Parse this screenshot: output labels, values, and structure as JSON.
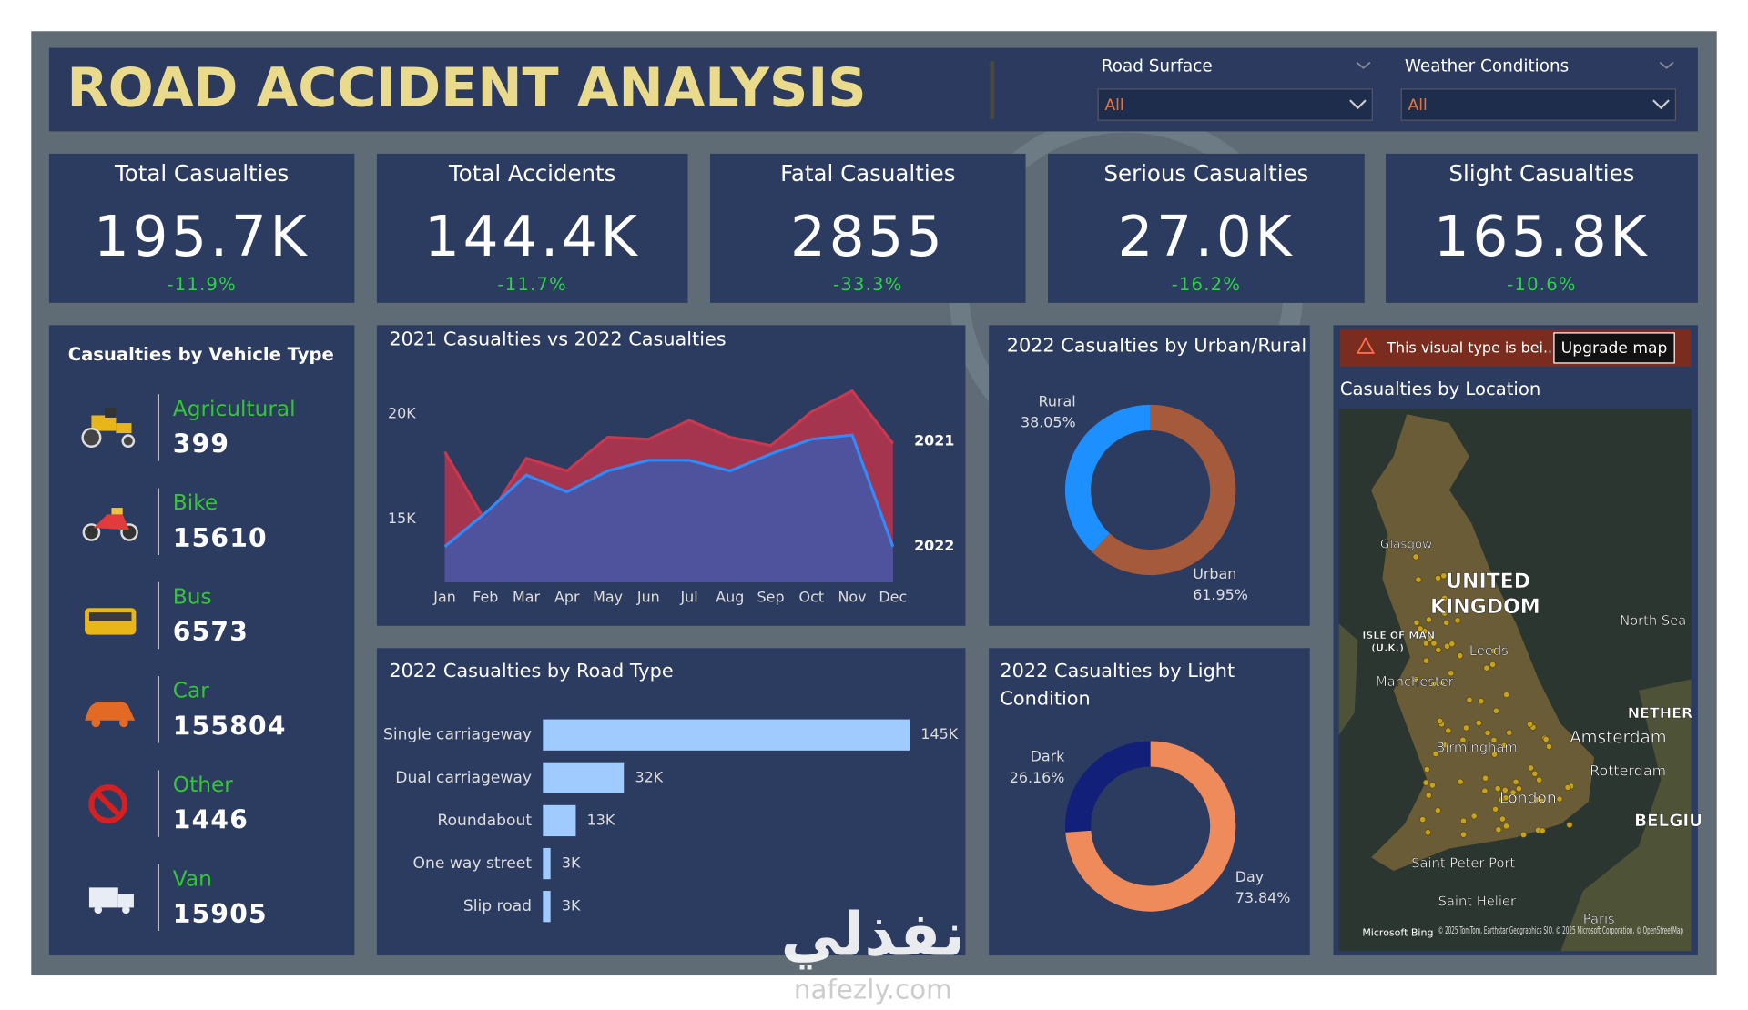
{
  "header": {
    "title": "ROAD ACCIDENT ANALYSIS"
  },
  "filters": [
    {
      "label": "Road Surface",
      "value": "All"
    },
    {
      "label": "Weather Conditions",
      "value": "All"
    }
  ],
  "kpis": [
    {
      "title": "Total Casualties",
      "value": "195.7K",
      "change": "-11.9%"
    },
    {
      "title": "Total Accidents",
      "value": "144.4K",
      "change": "-11.7%"
    },
    {
      "title": "Fatal Casualties",
      "value": "2855",
      "change": "-33.3%"
    },
    {
      "title": "Serious Casualties",
      "value": "27.0K",
      "change": "-16.2%"
    },
    {
      "title": "Slight Casualties",
      "value": "165.8K",
      "change": "-10.6%"
    }
  ],
  "vehicle_types": {
    "title": "Casualties by Vehicle Type",
    "items": [
      {
        "name": "Agricultural",
        "value": 399
      },
      {
        "name": "Bike",
        "value": 15610
      },
      {
        "name": "Bus",
        "value": 6573
      },
      {
        "name": "Car",
        "value": 155804
      },
      {
        "name": "Other",
        "value": 1446
      },
      {
        "name": "Van",
        "value": 15905
      }
    ]
  },
  "line_chart": {
    "type": "area",
    "title": "2021 Casualties vs 2022 Casualties",
    "categories": [
      "Jan",
      "Feb",
      "Mar",
      "Apr",
      "May",
      "Jun",
      "Jul",
      "Aug",
      "Sep",
      "Oct",
      "Nov",
      "Dec"
    ],
    "series": [
      {
        "name": "2021",
        "color": "#c8394f",
        "values": [
          18200,
          14900,
          17900,
          17300,
          18900,
          18800,
          19700,
          18900,
          18500,
          20100,
          21100,
          18600
        ]
      },
      {
        "name": "2022",
        "color": "#2f8cff",
        "values": [
          13700,
          15300,
          17100,
          16300,
          17300,
          17800,
          17800,
          17300,
          18100,
          18800,
          19000,
          13700
        ]
      }
    ],
    "ylim": [
      12000,
      22000
    ],
    "yticks": [
      {
        "value": 15000,
        "label": "15K"
      },
      {
        "value": 20000,
        "label": "20K"
      }
    ]
  },
  "road_type": {
    "type": "bar",
    "title": "2022 Casualties by Road Type",
    "categories": [
      "Single carriageway",
      "Dual carriageway",
      "Roundabout",
      "One way street",
      "Slip road"
    ],
    "values": [
      145000,
      32000,
      13000,
      3000,
      3000
    ],
    "value_labels": [
      "145K",
      "32K",
      "13K",
      "3K",
      "3K"
    ],
    "color": "#9fcbff",
    "xlim": [
      0,
      145000
    ]
  },
  "urban_rural": {
    "type": "donut",
    "title": "2022 Casualties by Urban/Rural",
    "categories": [
      "Rural",
      "Urban"
    ],
    "values": [
      38.05,
      61.95
    ],
    "value_labels": [
      "38.05%",
      "61.95%"
    ],
    "colors": [
      "#1e8fff",
      "#a65a3c"
    ]
  },
  "light_condition": {
    "type": "donut",
    "title": "2022 Casualties by Light Condition",
    "categories": [
      "Dark",
      "Day"
    ],
    "values": [
      26.16,
      73.84
    ],
    "value_labels": [
      "26.16%",
      "73.84%"
    ],
    "colors": [
      "#13207a",
      "#ef8a5b"
    ]
  },
  "map": {
    "warning": "This visual type is bei...",
    "button": "Upgrade map",
    "title": "Casualties by Location",
    "labels": [
      "Glasgow",
      "UNITED",
      "KINGDOM",
      "North Sea",
      "ISLE OF MAN",
      "(U.K.)",
      "Leeds",
      "Manchester",
      "Birmingham",
      "London",
      "NETHER",
      "Amsterdam",
      "Rotterdam",
      "BELGIU",
      "Saint Peter Port",
      "Saint Helier",
      "Paris"
    ],
    "brand": "Microsoft Bing",
    "attribution": "© 2025 TomTom, Earthstar Geographics SIO, © 2025 Microsoft Corporation, © OpenStreetMap"
  },
  "watermark": {
    "arabic": "نفذلي",
    "latin": "nafezly.com"
  }
}
